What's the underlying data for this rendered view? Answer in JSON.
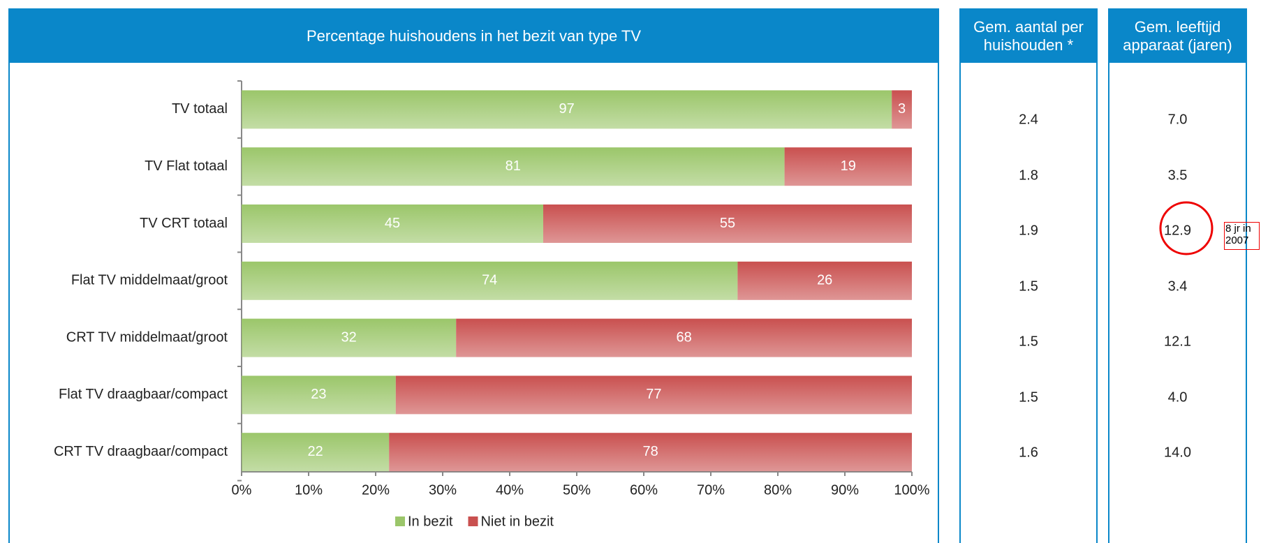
{
  "chart_data": {
    "type": "bar",
    "orientation": "horizontal",
    "stacked": true,
    "title": "Percentage huishoudens in het bezit van type TV",
    "categories": [
      "TV totaal",
      "TV Flat totaal",
      "TV CRT totaal",
      "Flat TV middelmaat/groot",
      "CRT TV middelmaat/groot",
      "Flat TV draagbaar/compact",
      "CRT TV draagbaar/compact"
    ],
    "series": [
      {
        "name": "In bezit",
        "color": "#9bc66a",
        "values": [
          97,
          81,
          45,
          74,
          32,
          23,
          22
        ]
      },
      {
        "name": "Niet in bezit",
        "color": "#c9504f",
        "values": [
          3,
          19,
          55,
          26,
          68,
          77,
          78
        ]
      }
    ],
    "xlim": [
      0,
      100
    ],
    "xticks": [
      {
        "value": 0,
        "label": "0%"
      },
      {
        "value": 10,
        "label": "10%"
      },
      {
        "value": 20,
        "label": "20%"
      },
      {
        "value": 30,
        "label": "30%"
      },
      {
        "value": 40,
        "label": "40%"
      },
      {
        "value": 50,
        "label": "50%"
      },
      {
        "value": 60,
        "label": "60%"
      },
      {
        "value": 70,
        "label": "70%"
      },
      {
        "value": 80,
        "label": "80%"
      },
      {
        "value": 90,
        "label": "90%"
      },
      {
        "value": 100,
        "label": "100%"
      }
    ],
    "legend": "bottom"
  },
  "panels": [
    {
      "title": "Gem. aantal per huishouden *",
      "values": [
        "2.4",
        "1.8",
        "1.9",
        "1.5",
        "1.5",
        "1.5",
        "1.6"
      ]
    },
    {
      "title": "Gem. leeftijd apparaat (jaren)",
      "values": [
        "7.0",
        "3.5",
        "12.9",
        "3.4",
        "12.1",
        "4.0",
        "14.0"
      ]
    }
  ],
  "annotation": {
    "text": "8 jr in 2007"
  }
}
